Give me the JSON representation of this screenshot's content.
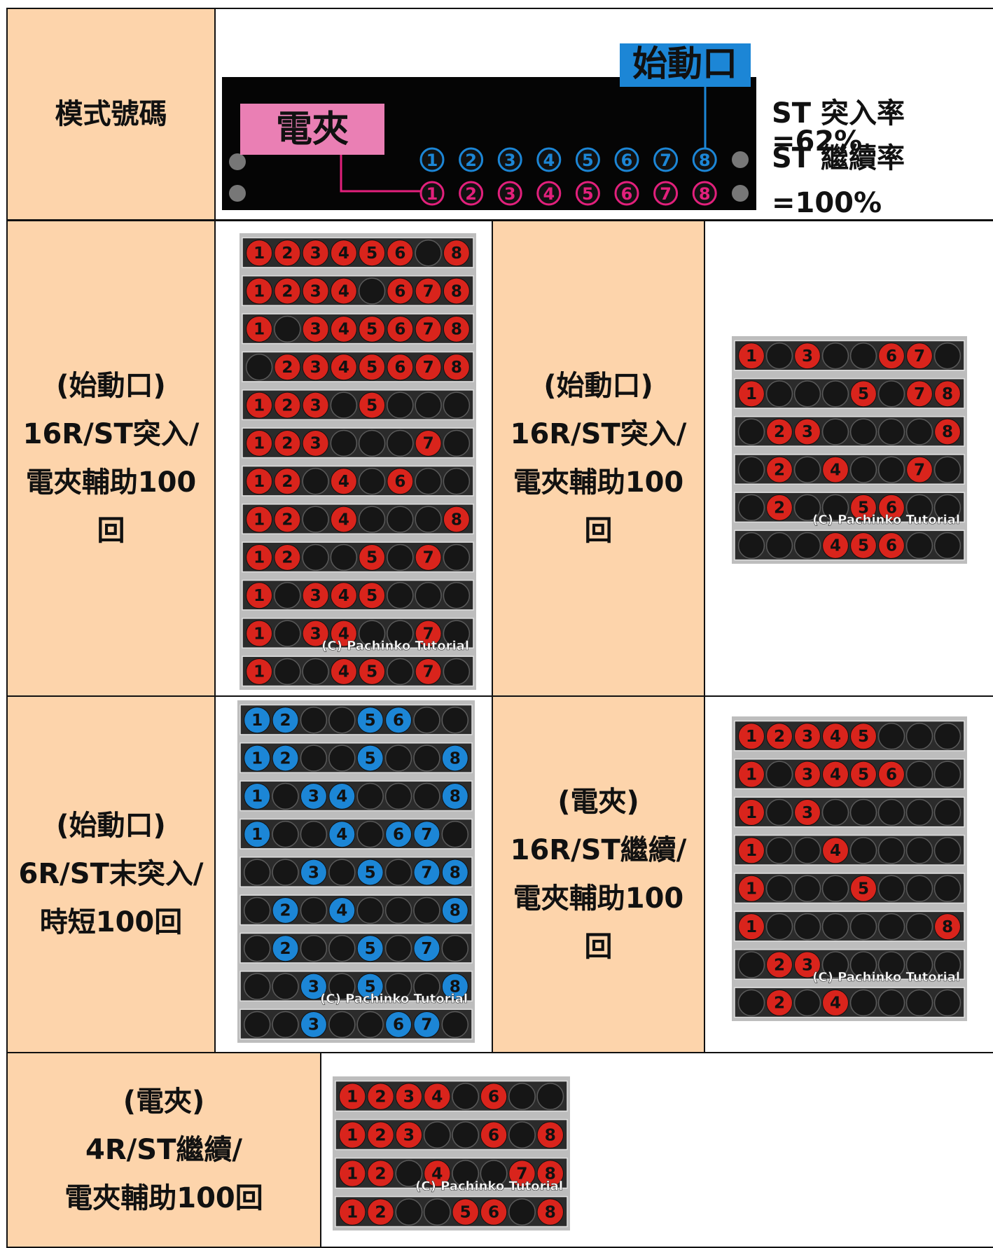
{
  "header": {
    "label": "模式號碼",
    "legend": {
      "start_label": "始動口",
      "clamp_label": "電夾",
      "top_lamps": [
        1,
        2,
        3,
        4,
        5,
        6,
        7,
        8
      ],
      "bottom_lamps": [
        1,
        2,
        3,
        4,
        5,
        6,
        7,
        8
      ],
      "top_color": "#1c86d6",
      "bottom_color": "#e2207c"
    },
    "stats": [
      "ST 突入率=62%",
      "ST 繼續率",
      "=100%"
    ]
  },
  "modes": [
    {
      "label_lines": [
        "(始動口)",
        "16R/ST突入/",
        "電夾輔助100",
        "回"
      ],
      "color": "#d9241c",
      "credit": "(C) Pachinko Tutorial",
      "patterns": [
        [
          1,
          2,
          3,
          4,
          5,
          6,
          null,
          8
        ],
        [
          1,
          2,
          3,
          4,
          null,
          6,
          7,
          8
        ],
        [
          1,
          null,
          3,
          4,
          5,
          6,
          7,
          8
        ],
        [
          null,
          2,
          3,
          4,
          5,
          6,
          7,
          8
        ],
        [
          1,
          2,
          3,
          null,
          5,
          null,
          null,
          null
        ],
        [
          1,
          2,
          3,
          null,
          null,
          null,
          7,
          null
        ],
        [
          1,
          2,
          null,
          4,
          null,
          6,
          null,
          null
        ],
        [
          1,
          2,
          null,
          4,
          null,
          null,
          null,
          8
        ],
        [
          1,
          2,
          null,
          null,
          5,
          null,
          7,
          null
        ],
        [
          1,
          null,
          3,
          4,
          5,
          null,
          null,
          null
        ],
        [
          1,
          null,
          3,
          4,
          null,
          null,
          7,
          null
        ],
        [
          1,
          null,
          null,
          4,
          5,
          null,
          7,
          null
        ]
      ]
    },
    {
      "label_lines": [
        "(始動口)",
        "16R/ST突入/",
        "電夾輔助100",
        "回"
      ],
      "color": "#d9241c",
      "credit": "(C) Pachinko Tutorial",
      "patterns": [
        [
          1,
          null,
          3,
          null,
          null,
          6,
          7,
          null
        ],
        [
          1,
          null,
          null,
          null,
          5,
          null,
          7,
          8
        ],
        [
          null,
          2,
          3,
          null,
          null,
          null,
          null,
          8
        ],
        [
          null,
          2,
          null,
          4,
          null,
          null,
          7,
          null
        ],
        [
          null,
          2,
          null,
          null,
          5,
          6,
          null,
          null
        ],
        [
          null,
          null,
          null,
          4,
          5,
          6,
          null,
          null
        ]
      ]
    },
    {
      "label_lines": [
        "(始動口)",
        "6R/ST末突入/",
        "時短100回"
      ],
      "color": "#1c86d6",
      "credit": "(C) Pachinko Tutorial",
      "patterns": [
        [
          1,
          2,
          null,
          null,
          5,
          6,
          null,
          null
        ],
        [
          1,
          2,
          null,
          null,
          5,
          null,
          null,
          8
        ],
        [
          1,
          null,
          3,
          4,
          null,
          null,
          null,
          8
        ],
        [
          1,
          null,
          null,
          4,
          null,
          6,
          7,
          null
        ],
        [
          null,
          null,
          3,
          null,
          5,
          null,
          7,
          8
        ],
        [
          null,
          2,
          null,
          4,
          null,
          null,
          null,
          8
        ],
        [
          null,
          2,
          null,
          null,
          5,
          null,
          7,
          null
        ],
        [
          null,
          null,
          3,
          null,
          5,
          null,
          null,
          8
        ],
        [
          null,
          null,
          3,
          null,
          null,
          6,
          7,
          null
        ]
      ]
    },
    {
      "label_lines": [
        "(電夾)",
        "16R/ST繼續/",
        "電夾輔助100",
        "回"
      ],
      "color": "#d9241c",
      "credit": "(C) Pachinko Tutorial",
      "patterns": [
        [
          1,
          2,
          3,
          4,
          5,
          null,
          null,
          null
        ],
        [
          1,
          null,
          3,
          4,
          5,
          6,
          null,
          null
        ],
        [
          1,
          null,
          3,
          null,
          null,
          null,
          null,
          null
        ],
        [
          1,
          null,
          null,
          4,
          null,
          null,
          null,
          null
        ],
        [
          1,
          null,
          null,
          null,
          5,
          null,
          null,
          null
        ],
        [
          1,
          null,
          null,
          null,
          null,
          null,
          null,
          8
        ],
        [
          null,
          2,
          3,
          null,
          null,
          null,
          null,
          null
        ],
        [
          null,
          2,
          null,
          4,
          null,
          null,
          null,
          null
        ]
      ]
    },
    {
      "label_lines": [
        "(電夾)",
        "4R/ST繼續/",
        "電夾輔助100回"
      ],
      "color": "#d9241c",
      "credit": "(C) Pachinko Tutorial",
      "patterns": [
        [
          1,
          2,
          3,
          4,
          null,
          6,
          null,
          null
        ],
        [
          1,
          2,
          3,
          null,
          null,
          6,
          null,
          8
        ],
        [
          1,
          2,
          null,
          4,
          null,
          null,
          7,
          8
        ],
        [
          1,
          2,
          null,
          null,
          5,
          6,
          null,
          8
        ]
      ]
    }
  ]
}
